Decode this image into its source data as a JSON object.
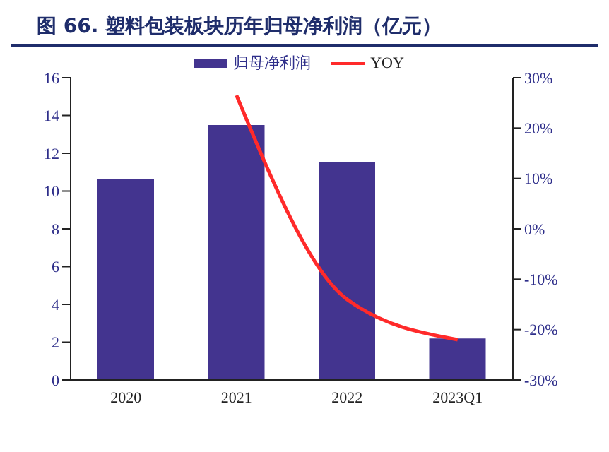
{
  "chart_data": {
    "type": "bar",
    "title": "图 66. 塑料包装板块历年归母净利润（亿元）",
    "categories": [
      "2020",
      "2021",
      "2022",
      "2023Q1"
    ],
    "series": [
      {
        "name": "归母净利润",
        "color": "#43348f",
        "values": [
          10.65,
          13.5,
          11.55,
          2.2
        ]
      },
      {
        "name": "YOY",
        "type": "line",
        "axis": "y2",
        "color": "#ff2a2a",
        "values": [
          null,
          26.5,
          -14,
          -22
        ]
      }
    ],
    "ylim": [
      0,
      16
    ],
    "yticks": [
      0,
      2,
      4,
      6,
      8,
      10,
      12,
      14,
      16
    ],
    "y2lim": [
      -30,
      30
    ],
    "y2ticks": [
      {
        "value": -30,
        "label": "-30%"
      },
      {
        "value": -20,
        "label": "-20%"
      },
      {
        "value": -10,
        "label": "-10%"
      },
      {
        "value": 0,
        "label": "0%"
      },
      {
        "value": 10,
        "label": "10%"
      },
      {
        "value": 20,
        "label": "20%"
      },
      {
        "value": 30,
        "label": "30%"
      }
    ],
    "legend": "top",
    "grid": false,
    "marker": "none"
  }
}
